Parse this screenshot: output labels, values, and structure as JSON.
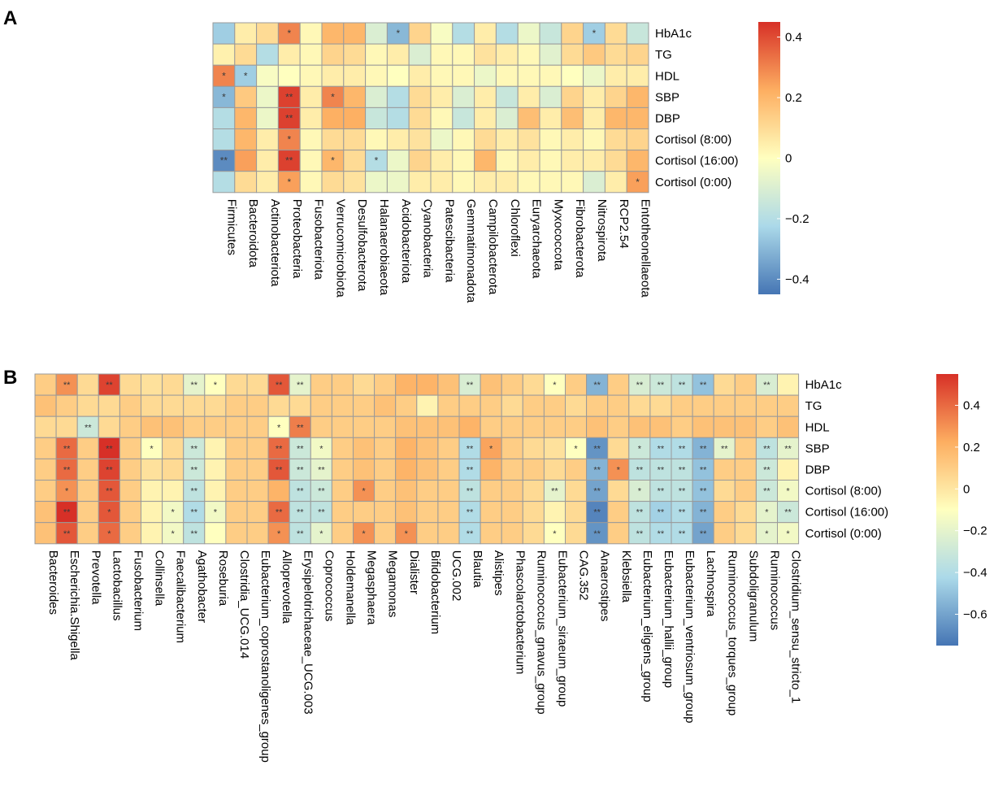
{
  "chart_data": [
    {
      "type": "heatmap",
      "panel_label": "A",
      "rows": [
        "HbA1c",
        "TG",
        "HDL",
        "SBP",
        "DBP",
        "Cortisol (8:00)",
        "Cortisol (16:00)",
        "Cortisol (0:00)"
      ],
      "columns": [
        "Firmicutes",
        "Bacteroidota",
        "Actinobacteriota",
        "Proteobacteria",
        "Fusobacteriota",
        "Verrucomicrobiota",
        "Desulfobacterota",
        "Halanaerobiaeota",
        "Acidobacteriota",
        "Cyanobacteria",
        "Patescibacteria",
        "Gemmatimonadota",
        "Campilobacterota",
        "Chloroflexi",
        "Euryarchaeota",
        "Myxococcota",
        "Fibrobacterota",
        "Nitrospirota",
        "RCP2.54",
        "Entotheonellaeota"
      ],
      "values": [
        [
          -0.25,
          0.05,
          0.1,
          0.3,
          0.02,
          0.2,
          0.2,
          -0.1,
          -0.3,
          0.12,
          -0.02,
          -0.2,
          0.05,
          -0.2,
          -0.05,
          -0.15,
          0.12,
          -0.25,
          0.1,
          -0.15
        ],
        [
          0.04,
          0.1,
          -0.2,
          0.05,
          0.02,
          0.12,
          0.1,
          0.02,
          0.05,
          -0.1,
          0.02,
          0.02,
          0.08,
          0.05,
          0.02,
          -0.08,
          0.1,
          0.15,
          0.1,
          0.12
        ],
        [
          0.3,
          -0.25,
          -0.02,
          0.0,
          0.02,
          0.05,
          0.05,
          0.02,
          0.0,
          0.05,
          0.02,
          0.02,
          -0.05,
          0.02,
          0.02,
          0.02,
          0.0,
          -0.05,
          0.05,
          0.05
        ],
        [
          -0.3,
          0.15,
          -0.05,
          0.42,
          0.05,
          0.3,
          0.2,
          -0.1,
          -0.2,
          0.1,
          0.05,
          -0.1,
          0.05,
          -0.15,
          0.05,
          -0.1,
          0.12,
          0.05,
          0.12,
          0.2
        ],
        [
          -0.2,
          0.2,
          -0.05,
          0.42,
          0.05,
          0.22,
          0.22,
          -0.15,
          -0.2,
          0.1,
          0.02,
          -0.15,
          0.05,
          -0.1,
          0.18,
          0.05,
          0.18,
          0.05,
          0.2,
          0.2
        ],
        [
          -0.2,
          0.2,
          0.05,
          0.3,
          0.02,
          0.1,
          0.1,
          0.02,
          0.05,
          0.08,
          -0.05,
          0.02,
          0.1,
          0.05,
          0.08,
          0.02,
          0.05,
          0.02,
          0.1,
          0.12
        ],
        [
          -0.4,
          0.25,
          0.05,
          0.42,
          0.02,
          0.2,
          0.1,
          -0.2,
          -0.05,
          0.12,
          0.05,
          0.02,
          0.2,
          0.02,
          0.05,
          0.02,
          0.05,
          0.05,
          0.1,
          0.2
        ],
        [
          -0.2,
          0.1,
          0.05,
          0.25,
          0.02,
          0.1,
          0.08,
          -0.05,
          -0.05,
          0.05,
          0.05,
          0.02,
          0.05,
          0.05,
          0.02,
          0.02,
          0.02,
          -0.1,
          0.05,
          0.25
        ]
      ],
      "significance": [
        [
          "",
          "",
          "",
          "*",
          "",
          "",
          "",
          "",
          "*",
          "",
          "",
          "",
          "",
          "",
          "",
          "",
          "",
          "*",
          "",
          ""
        ],
        [
          "",
          "",
          "",
          "",
          "",
          "",
          "",
          "",
          "",
          "",
          "",
          "",
          "",
          "",
          "",
          "",
          "",
          "",
          "",
          ""
        ],
        [
          "*",
          "*",
          "",
          "",
          "",
          "",
          "",
          "",
          "",
          "",
          "",
          "",
          "",
          "",
          "",
          "",
          "",
          "",
          "",
          ""
        ],
        [
          "*",
          "",
          "",
          "**",
          "",
          "*",
          "",
          "",
          "",
          "",
          "",
          "",
          "",
          "",
          "",
          "",
          "",
          "",
          "",
          ""
        ],
        [
          "",
          "",
          "",
          "**",
          "",
          "",
          "",
          "",
          "",
          "",
          "",
          "",
          "",
          "",
          "",
          "",
          "",
          "",
          "",
          ""
        ],
        [
          "",
          "",
          "",
          "*",
          "",
          "",
          "",
          "",
          "",
          "",
          "",
          "",
          "",
          "",
          "",
          "",
          "",
          "",
          "",
          ""
        ],
        [
          "**",
          "",
          "",
          "**",
          "",
          "*",
          "",
          "*",
          "",
          "",
          "",
          "",
          "",
          "",
          "",
          "",
          "",
          "",
          "",
          ""
        ],
        [
          "",
          "",
          "",
          "*",
          "",
          "",
          "",
          "",
          "",
          "",
          "",
          "",
          "",
          "",
          "",
          "",
          "",
          "",
          "",
          "*"
        ]
      ],
      "color_range": [
        -0.45,
        0.45
      ],
      "colorbar_ticks": [
        0.4,
        0.2,
        0,
        -0.2,
        -0.4
      ],
      "colorbar_tick_labels": [
        "0.4",
        "0.2",
        "0",
        "−0.2",
        "−0.4"
      ]
    },
    {
      "type": "heatmap",
      "panel_label": "B",
      "rows": [
        "HbA1c",
        "TG",
        "HDL",
        "SBP",
        "DBP",
        "Cortisol (8:00)",
        "Cortisol (16:00)",
        "Cortisol (0:00)"
      ],
      "columns": [
        "Bacteroides",
        "Escherichia.Shigella",
        "Prevotella",
        "Lactobacillus",
        "Fusobacterium",
        "Collinsella",
        "Faecalibacterium",
        "Agathobacter",
        "Roseburia",
        "Clostridia_UCG.014",
        "Eubacterium_coprostanoligenes_group",
        "Alloprevotella",
        "Erysipelotrichaceae_UCG.003",
        "Coprococcus",
        "Holdemanella",
        "Megasphaera",
        "Megamonas",
        "Dialister",
        "Bifidobacterium",
        "UCG.002",
        "Blautia",
        "Alistipes",
        "Phascolarctobacterium",
        "Ruminococcus_gnavus_group",
        "Eubacterium_siraeum_group",
        "CAG.352",
        "Anaerostipes",
        "Klebsiella",
        "Eubacterium_eligens_group",
        "Eubacterium_hallii_group",
        "Eubacterium_ventriosum_group",
        "Lachnospira",
        "Ruminococcus_torques_group",
        "Subdoligranulum",
        "Ruminococcus",
        "Clostridium_sensu_stricto_1"
      ],
      "values": [
        [
          0.1,
          0.3,
          0.05,
          0.5,
          0.05,
          0.02,
          0.05,
          -0.2,
          -0.1,
          0.05,
          0.05,
          0.45,
          -0.2,
          0.1,
          0.1,
          0.05,
          0.1,
          0.2,
          0.2,
          0.15,
          -0.25,
          0.15,
          0.1,
          0.05,
          -0.1,
          0.1,
          -0.55,
          0.1,
          -0.25,
          -0.3,
          -0.35,
          -0.5,
          0.05,
          0.1,
          -0.25,
          -0.05
        ],
        [
          0.15,
          0.1,
          0.05,
          0.05,
          0.1,
          0.05,
          0.05,
          0.05,
          0.05,
          0.1,
          0.1,
          0.05,
          0.05,
          0.1,
          0.1,
          0.1,
          0.15,
          0.1,
          -0.05,
          0.1,
          0.1,
          0.1,
          0.05,
          0.1,
          0.1,
          0.05,
          0.1,
          0.1,
          0.05,
          0.05,
          0.1,
          0.1,
          0.1,
          0.1,
          0.1,
          0.1
        ],
        [
          0.05,
          0.05,
          -0.3,
          0.05,
          0.1,
          0.15,
          0.15,
          0.1,
          0.1,
          0.1,
          0.1,
          -0.1,
          0.35,
          0.1,
          0.1,
          0.1,
          0.1,
          0.15,
          0.15,
          0.15,
          0.2,
          0.1,
          0.1,
          0.1,
          0.1,
          0.1,
          0.15,
          0.1,
          0.15,
          0.15,
          0.1,
          0.15,
          0.15,
          0.15,
          0.1,
          0.15
        ],
        [
          0.1,
          0.4,
          0.1,
          0.55,
          0.1,
          -0.1,
          0.05,
          -0.3,
          -0.05,
          0.1,
          0.1,
          0.4,
          -0.3,
          -0.15,
          0.1,
          0.15,
          0.1,
          0.2,
          0.15,
          0.1,
          -0.4,
          0.25,
          0.1,
          0.05,
          0.02,
          -0.1,
          -0.65,
          0.05,
          -0.3,
          -0.4,
          -0.4,
          -0.55,
          -0.2,
          0.1,
          -0.35,
          -0.2
        ],
        [
          0.1,
          0.4,
          0.1,
          0.5,
          0.1,
          0.02,
          0.05,
          -0.3,
          -0.05,
          0.1,
          0.1,
          0.45,
          -0.3,
          -0.2,
          0.1,
          0.15,
          0.1,
          0.2,
          0.15,
          0.1,
          -0.4,
          0.2,
          0.1,
          0.1,
          0.05,
          0.1,
          -0.55,
          0.3,
          -0.35,
          -0.35,
          -0.35,
          -0.5,
          0.1,
          0.1,
          -0.3,
          -0.05
        ],
        [
          0.1,
          0.3,
          0.1,
          0.45,
          0.1,
          -0.05,
          -0.05,
          -0.35,
          -0.05,
          0.1,
          0.1,
          0.2,
          -0.35,
          -0.3,
          0.1,
          0.3,
          0.1,
          0.15,
          0.1,
          0.1,
          -0.35,
          0.1,
          0.1,
          0.05,
          -0.2,
          0.05,
          -0.6,
          0.05,
          -0.25,
          -0.35,
          -0.35,
          -0.5,
          0.05,
          0.1,
          -0.3,
          -0.15
        ],
        [
          0.15,
          0.55,
          0.1,
          0.45,
          0.1,
          -0.05,
          -0.15,
          -0.4,
          -0.15,
          0.1,
          0.1,
          0.4,
          -0.35,
          -0.35,
          0.1,
          0.1,
          0.1,
          0.15,
          0.1,
          0.1,
          -0.4,
          0.1,
          0.1,
          0.05,
          -0.05,
          0.05,
          -0.7,
          0.1,
          -0.35,
          -0.45,
          -0.4,
          -0.55,
          0.1,
          0.05,
          -0.2,
          -0.3
        ],
        [
          0.15,
          0.45,
          0.1,
          0.4,
          0.1,
          -0.05,
          -0.15,
          -0.35,
          -0.1,
          0.1,
          0.1,
          0.3,
          -0.35,
          -0.2,
          0.1,
          0.3,
          0.1,
          0.3,
          0.1,
          0.1,
          -0.4,
          0.1,
          0.1,
          0.05,
          -0.1,
          0.05,
          -0.65,
          0.1,
          -0.35,
          -0.4,
          -0.4,
          -0.6,
          0.1,
          0.05,
          -0.2,
          -0.15
        ]
      ],
      "significance": [
        [
          "",
          "**",
          "",
          "**",
          "",
          "",
          "",
          "**",
          "*",
          "",
          "",
          "**",
          "**",
          "",
          "",
          "",
          "",
          "",
          "",
          "",
          "**",
          "",
          "",
          "",
          "*",
          "",
          "**",
          "",
          "**",
          "**",
          "**",
          "**",
          "",
          "",
          "**",
          ""
        ],
        [
          "",
          "",
          "",
          "",
          "",
          "",
          "",
          "",
          "",
          "",
          "",
          "",
          "",
          "",
          "",
          "",
          "",
          "",
          "",
          "",
          "",
          "",
          "",
          "",
          "",
          "",
          "",
          "",
          "",
          "",
          "",
          "",
          "",
          "",
          "",
          ""
        ],
        [
          "",
          "",
          "**",
          "",
          "",
          "",
          "",
          "",
          "",
          "",
          "",
          "*",
          "**",
          "",
          "",
          "",
          "",
          "",
          "",
          "",
          "",
          "",
          "",
          "",
          "",
          "",
          "",
          "",
          "",
          "",
          "",
          "",
          "",
          "",
          "",
          ""
        ],
        [
          "",
          "**",
          "",
          "**",
          "",
          "*",
          "",
          "**",
          "",
          "",
          "",
          "**",
          "**",
          "*",
          "",
          "",
          "",
          "",
          "",
          "",
          "**",
          "*",
          "",
          "",
          "",
          "*",
          "**",
          "",
          "*",
          "**",
          "**",
          "**",
          "**",
          "",
          "**",
          "**"
        ],
        [
          "",
          "**",
          "",
          "**",
          "",
          "",
          "",
          "**",
          "",
          "",
          "",
          "**",
          "**",
          "**",
          "",
          "",
          "",
          "",
          "",
          "",
          "**",
          "",
          "",
          "",
          "",
          "",
          "**",
          "*",
          "**",
          "**",
          "**",
          "**",
          "",
          "",
          "**",
          ""
        ],
        [
          "",
          "*",
          "",
          "**",
          "",
          "",
          "",
          "**",
          "",
          "",
          "",
          "",
          "**",
          "**",
          "",
          "*",
          "",
          "",
          "",
          "",
          "**",
          "",
          "",
          "",
          "**",
          "",
          "**",
          "",
          "*",
          "**",
          "**",
          "**",
          "",
          "",
          "**",
          "*"
        ],
        [
          "",
          "**",
          "",
          "*",
          "",
          "",
          "*",
          "**",
          "*",
          "",
          "",
          "**",
          "**",
          "**",
          "",
          "",
          "",
          "",
          "",
          "",
          "**",
          "",
          "",
          "",
          "",
          "",
          "**",
          "",
          "**",
          "**",
          "**",
          "**",
          "",
          "",
          "*",
          "**"
        ],
        [
          "",
          "**",
          "",
          "*",
          "",
          "",
          "*",
          "**",
          "",
          "",
          "",
          "*",
          "**",
          "*",
          "",
          "*",
          "",
          "*",
          "",
          "",
          "**",
          "",
          "",
          "",
          "*",
          "",
          "**",
          "",
          "**",
          "**",
          "**",
          "**",
          "",
          "",
          "*",
          "*"
        ]
      ],
      "color_range": [
        -0.75,
        0.55
      ],
      "colorbar_ticks": [
        0.4,
        0.2,
        0,
        -0.2,
        -0.4,
        -0.6
      ],
      "colorbar_tick_labels": [
        "0.4",
        "0.2",
        "0",
        "−0.2",
        "−0.4",
        "−0.6"
      ]
    }
  ]
}
